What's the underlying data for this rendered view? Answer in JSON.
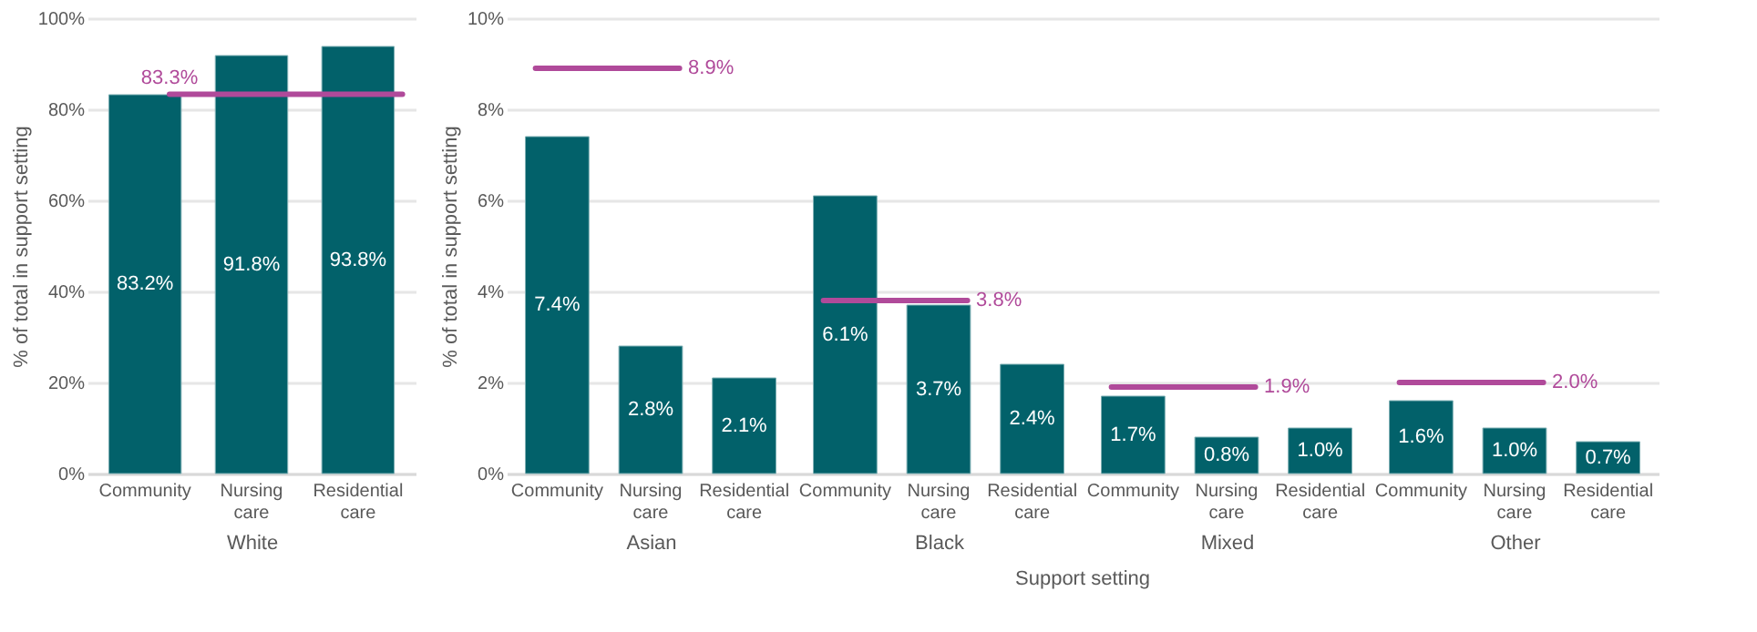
{
  "chart_data": [
    {
      "type": "bar",
      "categories": [
        "Community",
        "Nursing care",
        "Residential care"
      ],
      "values": [
        83.2,
        91.8,
        93.8
      ],
      "value_labels": [
        "83.2%",
        "91.8%",
        "93.8%"
      ],
      "color": "#02616a",
      "xlabel": "White",
      "ylabel": "% of total in support setting",
      "ylim": [
        0,
        100
      ],
      "yticks": [
        {
          "value": 0,
          "label": "0%"
        },
        {
          "value": 20,
          "label": "20%"
        },
        {
          "value": 40,
          "label": "40%"
        },
        {
          "value": 60,
          "label": "60%"
        },
        {
          "value": 80,
          "label": "80%"
        },
        {
          "value": 100,
          "label": "100%"
        }
      ],
      "grid": "y",
      "ref_lines": [
        {
          "axis": "y",
          "value": 83.3,
          "label": "83.3%",
          "color": "#b04a9a"
        }
      ]
    },
    {
      "type": "bar",
      "categories": [
        "Community",
        "Nursing care",
        "Residential care"
      ],
      "values": [
        7.4,
        2.8,
        2.1
      ],
      "value_labels": [
        "7.4%",
        "2.8%",
        "2.1%"
      ],
      "color": "#02616a",
      "xlabel": "Asian",
      "ylabel": "% of total in support setting",
      "ylim": [
        0,
        10
      ],
      "yticks": [
        {
          "value": 0,
          "label": "0%"
        },
        {
          "value": 2,
          "label": "2%"
        },
        {
          "value": 4,
          "label": "4%"
        },
        {
          "value": 6,
          "label": "6%"
        },
        {
          "value": 8,
          "label": "8%"
        },
        {
          "value": 10,
          "label": "10%"
        }
      ],
      "grid": "y",
      "ref_lines": [
        {
          "axis": "y",
          "value": 8.9,
          "label": "8.9%",
          "color": "#b04a9a"
        }
      ]
    },
    {
      "type": "bar",
      "categories": [
        "Community",
        "Nursing care",
        "Residential care"
      ],
      "values": [
        6.1,
        3.7,
        2.4
      ],
      "value_labels": [
        "6.1%",
        "3.7%",
        "2.4%"
      ],
      "color": "#02616a",
      "xlabel": "Black",
      "ylim": [
        0,
        10
      ],
      "yticks": [
        0,
        2,
        4,
        6,
        8,
        10
      ],
      "tick_labels": "x",
      "grid": "y",
      "ref_lines": [
        {
          "axis": "y",
          "value": 3.8,
          "label": "3.8%",
          "color": "#b04a9a"
        }
      ],
      "annotations": [
        "Support setting"
      ]
    },
    {
      "type": "bar",
      "categories": [
        "Community",
        "Nursing care",
        "Residential care"
      ],
      "values": [
        1.7,
        0.8,
        1.0
      ],
      "value_labels": [
        "1.7%",
        "0.8%",
        "1.0%"
      ],
      "color": "#02616a",
      "xlabel": "Mixed",
      "ylim": [
        0,
        10
      ],
      "yticks": [
        0,
        2,
        4,
        6,
        8,
        10
      ],
      "tick_labels": "x",
      "grid": "y",
      "ref_lines": [
        {
          "axis": "y",
          "value": 1.9,
          "label": "1.9%",
          "color": "#b04a9a"
        }
      ]
    },
    {
      "type": "bar",
      "categories": [
        "Community",
        "Nursing care",
        "Residential care"
      ],
      "values": [
        1.6,
        1.0,
        0.7
      ],
      "value_labels": [
        "1.6%",
        "1.0%",
        "0.7%"
      ],
      "color": "#02616a",
      "xlabel": "Other",
      "ylim": [
        0,
        10
      ],
      "yticks": [
        0,
        2,
        4,
        6,
        8,
        10
      ],
      "tick_labels": "x",
      "grid": "y",
      "ref_lines": [
        {
          "axis": "y",
          "value": 2.0,
          "label": "2.0%",
          "color": "#b04a9a"
        }
      ]
    }
  ]
}
